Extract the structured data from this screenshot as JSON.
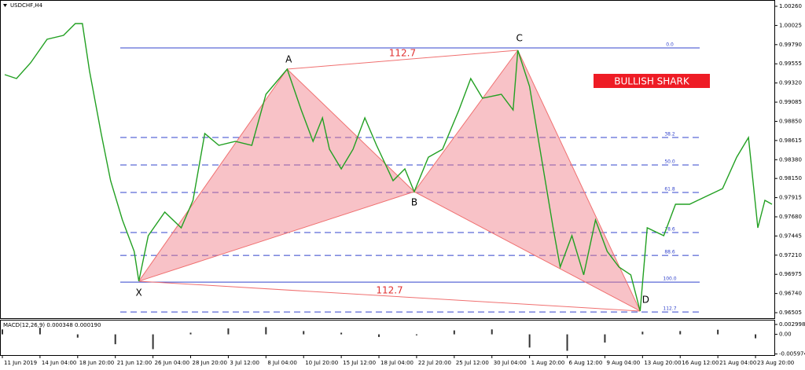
{
  "chart_data": {
    "type": "line",
    "title": "USDCHF,H4",
    "badge": "BULLISH SHARK",
    "color": "#22a022",
    "x": [
      1,
      6,
      12,
      19,
      26,
      31,
      34,
      37,
      42,
      46,
      51,
      56,
      58,
      62,
      69,
      76,
      81,
      86,
      92,
      99,
      106,
      112,
      121,
      127,
      132,
      136,
      139,
      144,
      149,
      154,
      159,
      166,
      171,
      175,
      181,
      187,
      194,
      199,
      204,
      212,
      217,
      219,
      224,
      229,
      234,
      237,
      242,
      247,
      252,
      257,
      262,
      267,
      271,
      274,
      281,
      286,
      292,
      299,
      306,
      312,
      317,
      321,
      324,
      327
    ],
    "values": [
      0.99422,
      0.99374,
      0.99567,
      0.99856,
      0.99904,
      1.00048,
      1.00048,
      0.99471,
      0.987,
      0.98123,
      0.97641,
      0.97256,
      0.96891,
      0.97449,
      0.97738,
      0.97545,
      0.97882,
      0.987,
      0.98556,
      0.98604,
      0.98556,
      0.99182,
      0.9949,
      0.98989,
      0.98604,
      0.98893,
      0.98508,
      0.98267,
      0.98508,
      0.98893,
      0.98556,
      0.98123,
      0.98267,
      0.97988,
      0.98411,
      0.98508,
      0.98989,
      0.99374,
      0.99134,
      0.99182,
      0.98989,
      0.99721,
      0.99278,
      0.98411,
      0.97545,
      0.97064,
      0.97449,
      0.96968,
      0.97641,
      0.97256,
      0.97064,
      0.96968,
      0.96525,
      0.97545,
      0.97449,
      0.97834,
      0.97834,
      0.9793,
      0.98026,
      0.98411,
      0.98652,
      0.97545,
      0.97882,
      0.97834
    ],
    "xlim": [
      -1,
      328
    ],
    "xticks": [
      {
        "value": 0,
        "label": "11 Jun 2019"
      },
      {
        "value": 16,
        "label": "14 Jun 04:00"
      },
      {
        "value": 32,
        "label": "18 Jun 20:00"
      },
      {
        "value": 48,
        "label": "21 Jun 12:00"
      },
      {
        "value": 64,
        "label": "26 Jun 04:00"
      },
      {
        "value": 80,
        "label": "28 Jun 20:00"
      },
      {
        "value": 96,
        "label": "3 Jul 12:00"
      },
      {
        "value": 112,
        "label": "8 Jul 04:00"
      },
      {
        "value": 128,
        "label": "10 Jul 20:00"
      },
      {
        "value": 144,
        "label": "15 Jul 12:00"
      },
      {
        "value": 160,
        "label": "18 Jul 04:00"
      },
      {
        "value": 176,
        "label": "22 Jul 20:00"
      },
      {
        "value": 192,
        "label": "25 Jul 12:00"
      },
      {
        "value": 208,
        "label": "30 Jul 04:00"
      },
      {
        "value": 224,
        "label": "1 Aug 20:00"
      },
      {
        "value": 240,
        "label": "6 Aug 12:00"
      },
      {
        "value": 256,
        "label": "9 Aug 04:00"
      },
      {
        "value": 272,
        "label": "13 Aug 20:00"
      },
      {
        "value": 288,
        "label": "16 Aug 12:00"
      },
      {
        "value": 304,
        "label": "21 Aug 04:00"
      },
      {
        "value": 320,
        "label": "23 Aug 20:00"
      }
    ],
    "ylim": [
      0.96438,
      1.00337
    ],
    "yticks": [
      {
        "value": 1.0026,
        "label": "1.00260"
      },
      1.00025,
      {
        "value": 0.9979,
        "label": "0.99790"
      },
      0.99555,
      {
        "value": 0.9932,
        "label": "0.99320"
      },
      0.99085,
      {
        "value": 0.9885,
        "label": "0.98850"
      },
      0.98615,
      {
        "value": 0.9838,
        "label": "0.98380"
      },
      {
        "value": 0.9815,
        "label": "0.98150"
      },
      0.97915,
      {
        "value": 0.9768,
        "label": "0.97680"
      },
      0.97445,
      {
        "value": 0.9721,
        "label": "0.97210"
      },
      0.96975,
      {
        "value": 0.9674,
        "label": "0.96740"
      },
      0.96505
    ],
    "pattern": {
      "color": "#f07070",
      "points": [
        {
          "label": "X",
          "x": 58,
          "price": 0.96891
        },
        {
          "label": "A",
          "x": 121,
          "price": 0.9949
        },
        {
          "label": "B",
          "x": 175,
          "price": 0.97988
        },
        {
          "label": "C",
          "x": 219,
          "price": 0.99721
        },
        {
          "label": "D",
          "x": 271,
          "price": 0.96525
        }
      ],
      "upper_ratio": 112.7,
      "lower_ratio": 112.7
    },
    "fib_levels": [
      {
        "level": {
          "value": 0,
          "label": "0.0"
        },
        "price": 0.9975
      },
      {
        "level": 38.2,
        "price": 0.98652
      },
      {
        "level": {
          "value": 50,
          "label": "50.0"
        },
        "price": 0.98315
      },
      {
        "level": 61.8,
        "price": 0.97978
      },
      {
        "level": 78.6,
        "price": 0.97487
      },
      {
        "level": 88.6,
        "price": 0.97207
      },
      {
        "level": {
          "value": 100,
          "label": "100.0"
        },
        "price": 0.9688
      },
      {
        "level": 112.7,
        "price": 0.96514
      }
    ],
    "macd": {
      "label": "MACD(12,26,9) 0.000348 0.000190",
      "x": [
        0,
        16,
        32,
        48,
        64,
        80,
        96,
        112,
        128,
        144,
        160,
        176,
        192,
        208,
        224,
        240,
        256,
        272,
        288,
        304,
        320
      ],
      "values": [
        0.0015,
        0.002,
        -0.001,
        -0.003,
        -0.0045,
        0.0005,
        0.0018,
        0.0022,
        0.001,
        0.0005,
        -0.0008,
        -0.0003,
        0.0012,
        0.0015,
        -0.004,
        -0.005,
        -0.0025,
        0.0008,
        0.001,
        0.0014,
        -0.0012
      ],
      "ylim": [
        -0.0063,
        0.0042
      ],
      "yticks": [
        0.002998,
        {
          "value": 0,
          "label": "0.00"
        },
        -0.005974
      ]
    }
  }
}
